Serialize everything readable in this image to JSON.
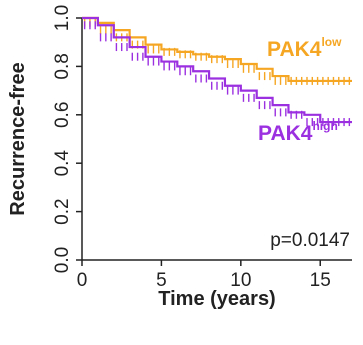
{
  "chart_data": {
    "type": "line",
    "xlabel": "Time (years)",
    "ylabel": "Recurrence-free",
    "xlim": [
      0,
      17
    ],
    "ylim": [
      0,
      1.0
    ],
    "x_ticks": [
      "0",
      "5",
      "10",
      "15"
    ],
    "x_tick_values": [
      0,
      5,
      10,
      15
    ],
    "y_ticks": [
      "0.0",
      "0.2",
      "0.4",
      "0.6",
      "0.8",
      "1.0"
    ],
    "y_tick_values": [
      0,
      0.2,
      0.4,
      0.6,
      0.8,
      1.0
    ],
    "annotation": "p=0.0147",
    "grid": false,
    "series": [
      {
        "name": "PAK4",
        "name_superscript": "low",
        "color": "#F5A623",
        "x": [
          0,
          1,
          2,
          3,
          4,
          5,
          6,
          7,
          8,
          9,
          10,
          11,
          12,
          13,
          14,
          15,
          16,
          17
        ],
        "y": [
          1.0,
          0.98,
          0.95,
          0.92,
          0.89,
          0.87,
          0.86,
          0.85,
          0.84,
          0.83,
          0.81,
          0.79,
          0.76,
          0.74,
          0.74,
          0.74,
          0.74,
          0.74
        ]
      },
      {
        "name": "PAK4",
        "name_superscript": "high",
        "color": "#9B30E0",
        "x": [
          0,
          1,
          2,
          3,
          4,
          5,
          6,
          7,
          8,
          9,
          10,
          11,
          12,
          13,
          14,
          15,
          16,
          17
        ],
        "y": [
          1.0,
          0.97,
          0.92,
          0.88,
          0.84,
          0.82,
          0.8,
          0.78,
          0.75,
          0.72,
          0.7,
          0.67,
          0.64,
          0.61,
          0.6,
          0.57,
          0.57,
          0.57
        ]
      }
    ]
  }
}
